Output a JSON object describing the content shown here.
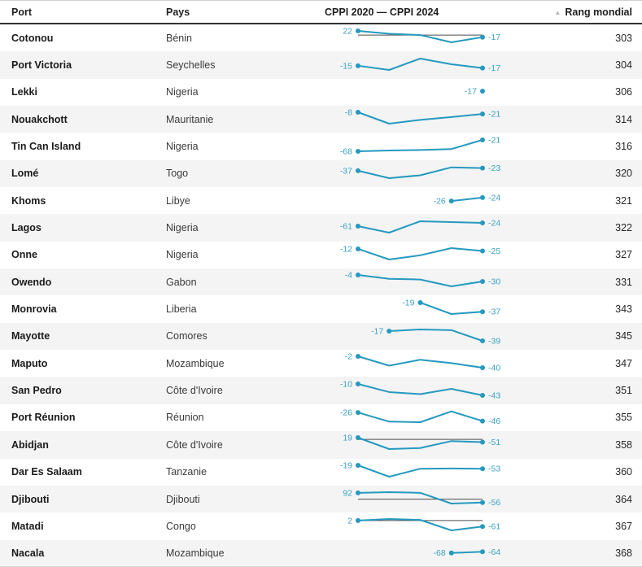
{
  "meta": {
    "accent": "#2599bf",
    "label_color": "#3ba2c2",
    "zero_line_color": "#4d4d4d",
    "stripe_color": "#f4f4f4",
    "header_rule_color": "#333333",
    "sort_icon": "triangle-up"
  },
  "header": {
    "columns": [
      {
        "label": "Port",
        "sortable": false
      },
      {
        "label": "Pays",
        "sortable": false
      },
      {
        "label": "CPPI 2020 — CPPI 2024",
        "sortable": false
      },
      {
        "label": "Rang mondial",
        "sortable": true,
        "sort_state": "ascending"
      }
    ]
  },
  "rows": [
    {
      "port": "Cotonou",
      "country": "Bénin",
      "rank": 303,
      "spark": {
        "start_value": 22,
        "end_value": -17,
        "start_index": 0,
        "shape": [
          0,
          0.25,
          0.36,
          1,
          0.55
        ],
        "zero_line": 0.37
      }
    },
    {
      "port": "Port Victoria",
      "country": "Seychelles",
      "rank": 304,
      "spark": {
        "start_value": -15,
        "end_value": -17,
        "start_index": 0,
        "shape": [
          0.63,
          1,
          0,
          0.5,
          0.83
        ],
        "zero_line": null
      }
    },
    {
      "port": "Lekki",
      "country": "Nigeria",
      "rank": 306,
      "spark": {
        "start_value": null,
        "end_value": -17,
        "start_index": 4,
        "shape": [
          0.5
        ],
        "zero_line": null,
        "single_label_side": "left"
      }
    },
    {
      "port": "Nouakchott",
      "country": "Mauritanie",
      "rank": 314,
      "spark": {
        "start_value": -8,
        "end_value": -21,
        "start_index": 0,
        "shape": [
          0,
          1,
          0.67,
          0.42,
          0.15
        ],
        "zero_line": null
      }
    },
    {
      "port": "Tin Can Island",
      "country": "Nigeria",
      "rank": 316,
      "spark": {
        "start_value": -68,
        "end_value": -21,
        "start_index": 0,
        "shape": [
          1,
          0.93,
          0.88,
          0.8,
          0
        ],
        "zero_line": null
      }
    },
    {
      "port": "Lomé",
      "country": "Togo",
      "rank": 320,
      "spark": {
        "start_value": -37,
        "end_value": -23,
        "start_index": 0,
        "shape": [
          0.35,
          1,
          0.75,
          0.05,
          0.12
        ],
        "zero_line": null
      }
    },
    {
      "port": "Khoms",
      "country": "Libye",
      "rank": 321,
      "spark": {
        "start_value": -26,
        "end_value": -24,
        "start_index": 3,
        "shape": [
          0.65,
          0.35
        ],
        "zero_line": null
      }
    },
    {
      "port": "Lagos",
      "country": "Nigeria",
      "rank": 322,
      "spark": {
        "start_value": -61,
        "end_value": -24,
        "start_index": 0,
        "shape": [
          0.43,
          1,
          0,
          0.07,
          0.14
        ],
        "zero_line": null
      }
    },
    {
      "port": "Onne",
      "country": "Nigeria",
      "rank": 327,
      "spark": {
        "start_value": -12,
        "end_value": -25,
        "start_index": 0,
        "shape": [
          0.07,
          1,
          0.63,
          0,
          0.25
        ],
        "zero_line": null
      }
    },
    {
      "port": "Owendo",
      "country": "Gabon",
      "rank": 331,
      "spark": {
        "start_value": -4,
        "end_value": -30,
        "start_index": 0,
        "shape": [
          0,
          0.34,
          0.4,
          1,
          0.57
        ],
        "zero_line": null
      }
    },
    {
      "port": "Monrovia",
      "country": "Liberia",
      "rank": 343,
      "spark": {
        "start_value": -19,
        "end_value": -37,
        "start_index": 2,
        "shape": [
          0,
          1,
          0.8
        ],
        "zero_line": null
      }
    },
    {
      "port": "Mayotte",
      "country": "Comores",
      "rank": 345,
      "spark": {
        "start_value": -17,
        "end_value": -39,
        "start_index": 1,
        "shape": [
          0.14,
          0,
          0.06,
          1
        ],
        "zero_line": null
      }
    },
    {
      "port": "Maputo",
      "country": "Mozambique",
      "rank": 347,
      "spark": {
        "start_value": -2,
        "end_value": -40,
        "start_index": 0,
        "shape": [
          0,
          0.82,
          0.3,
          0.6,
          1
        ],
        "zero_line": null
      }
    },
    {
      "port": "San Pedro",
      "country": "Côte d'Ivoire",
      "rank": 351,
      "spark": {
        "start_value": -10,
        "end_value": -43,
        "start_index": 0,
        "shape": [
          0,
          0.71,
          0.89,
          0.43,
          1
        ],
        "zero_line": null
      }
    },
    {
      "port": "Port Réunion",
      "country": "Réunion",
      "rank": 355,
      "spark": {
        "start_value": -26,
        "end_value": -46,
        "start_index": 0,
        "shape": [
          0.15,
          0.95,
          1,
          0.05,
          0.9
        ],
        "zero_line": null
      }
    },
    {
      "port": "Abidjan",
      "country": "Côte d'Ivoire",
      "rank": 358,
      "spark": {
        "start_value": 19,
        "end_value": -51,
        "start_index": 0,
        "shape": [
          0,
          1,
          0.91,
          0.3,
          0.39
        ],
        "zero_line": 0.15
      }
    },
    {
      "port": "Dar Es Salaam",
      "country": "Tanzanie",
      "rank": 360,
      "spark": {
        "start_value": -19,
        "end_value": -53,
        "start_index": 0,
        "shape": [
          0,
          1,
          0.3,
          0.28,
          0.3
        ],
        "zero_line": null
      }
    },
    {
      "port": "Djibouti",
      "country": "Djibouti",
      "rank": 364,
      "spark": {
        "start_value": 92,
        "end_value": -56,
        "start_index": 0,
        "shape": [
          0.06,
          0,
          0.06,
          1,
          0.91
        ],
        "zero_line": 0.62
      }
    },
    {
      "port": "Matadi",
      "country": "Congo",
      "rank": 367,
      "spark": {
        "start_value": 2,
        "end_value": -61,
        "start_index": 0,
        "shape": [
          0.13,
          0,
          0.08,
          1,
          0.66
        ],
        "zero_line": 0.13
      }
    },
    {
      "port": "Nacala",
      "country": "Mozambique",
      "rank": 368,
      "spark": {
        "start_value": -68,
        "end_value": -64,
        "start_index": 3,
        "shape": [
          0.55,
          0.45
        ],
        "zero_line": null
      }
    }
  ],
  "chart_data": {
    "type": "table",
    "title": "CPPI 2020 — CPPI 2024",
    "columns": [
      "Port",
      "Pays",
      "CPPI début (étiquette)",
      "CPPI 2024 (étiquette)",
      "Rang mondial"
    ],
    "sort": {
      "column": "Rang mondial",
      "direction": "ascending"
    },
    "rows": [
      [
        "Cotonou",
        "Bénin",
        22,
        -17,
        303
      ],
      [
        "Port Victoria",
        "Seychelles",
        -15,
        -17,
        304
      ],
      [
        "Lekki",
        "Nigeria",
        null,
        -17,
        306
      ],
      [
        "Nouakchott",
        "Mauritanie",
        -8,
        -21,
        314
      ],
      [
        "Tin Can Island",
        "Nigeria",
        -68,
        -21,
        316
      ],
      [
        "Lomé",
        "Togo",
        -37,
        -23,
        320
      ],
      [
        "Khoms",
        "Libye",
        -26,
        -24,
        321
      ],
      [
        "Lagos",
        "Nigeria",
        -61,
        -24,
        322
      ],
      [
        "Onne",
        "Nigeria",
        -12,
        -25,
        327
      ],
      [
        "Owendo",
        "Gabon",
        -4,
        -30,
        331
      ],
      [
        "Monrovia",
        "Liberia",
        -19,
        -37,
        343
      ],
      [
        "Mayotte",
        "Comores",
        -17,
        -39,
        345
      ],
      [
        "Maputo",
        "Mozambique",
        -2,
        -40,
        347
      ],
      [
        "San Pedro",
        "Côte d'Ivoire",
        -10,
        -43,
        351
      ],
      [
        "Port Réunion",
        "Réunion",
        -26,
        -46,
        355
      ],
      [
        "Abidjan",
        "Côte d'Ivoire",
        19,
        -51,
        358
      ],
      [
        "Dar Es Salaam",
        "Tanzanie",
        -19,
        -53,
        360
      ],
      [
        "Djibouti",
        "Djibouti",
        92,
        -56,
        364
      ],
      [
        "Matadi",
        "Congo",
        2,
        -61,
        367
      ],
      [
        "Nacala",
        "Mozambique",
        -68,
        -64,
        368
      ]
    ],
    "sparkline_note": "Chaque ligne contient une mini-courbe (5 positions 2020→2024); points et étiquettes aux extrémités; ligne zéro noire visible quand la valeur de départ est positive."
  }
}
